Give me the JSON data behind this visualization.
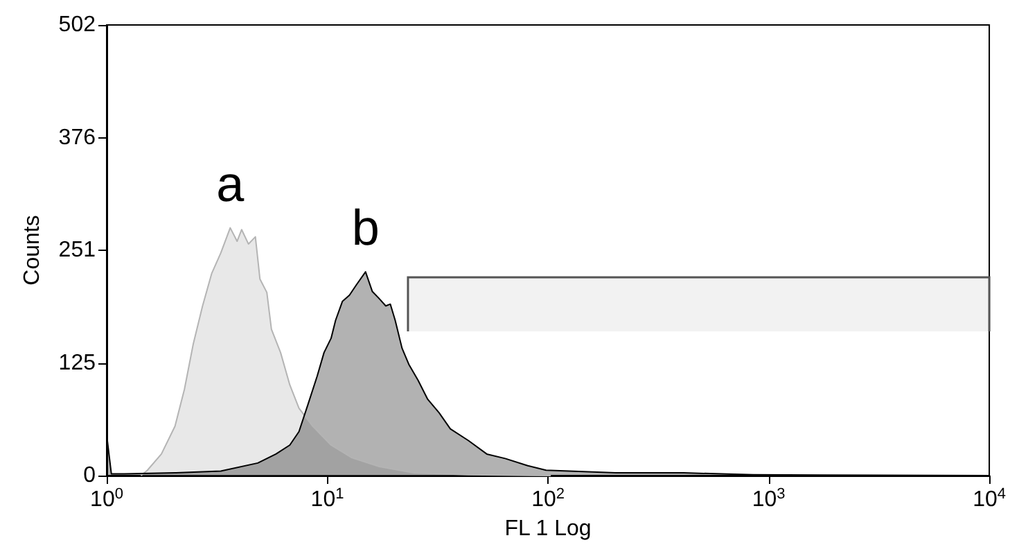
{
  "chart_data": {
    "type": "area",
    "xlabel": "FL 1 Log",
    "ylabel": "Counts",
    "log": "x",
    "grid": false,
    "legend": false,
    "marker": "none",
    "line_style": "solid",
    "xlim": [
      1,
      10000
    ],
    "xticks": [
      {
        "value": 1,
        "label": "10$^{0}$"
      },
      {
        "value": 10,
        "label": "10$^{1}$"
      },
      {
        "value": 100,
        "label": "10$^{2}$"
      },
      {
        "value": 1000,
        "label": "10$^{3}$"
      },
      {
        "value": 10000,
        "label": "10$^{4}$"
      }
    ],
    "ylim": [
      0,
      502
    ],
    "yticks": [
      0,
      125,
      251,
      376,
      502
    ],
    "series": [
      {
        "name": "a",
        "color": "#b4b4b4",
        "x": [
          1.43,
          1.53,
          1.77,
          2.04,
          2.25,
          2.47,
          2.72,
          2.99,
          3.29,
          3.63,
          3.9,
          4.09,
          4.39,
          4.72,
          4.95,
          5.32,
          5.58,
          6.14,
          6.76,
          7.44,
          8.59,
          10.4,
          12.9,
          17.2,
          24.6,
          43.6,
          103
        ],
        "values": [
          0,
          6,
          24,
          55,
          96,
          147,
          189,
          225,
          248,
          276,
          261,
          274,
          258,
          266,
          219,
          204,
          163,
          137,
          101,
          75,
          55,
          34,
          20,
          10,
          3,
          1,
          0
        ]
      },
      {
        "name": "b",
        "color": "#000000",
        "x": [
          1,
          1.05,
          1.2,
          2.04,
          3.29,
          4.84,
          5.85,
          6.76,
          7.44,
          8.19,
          9,
          9.66,
          10.4,
          10.9,
          11.7,
          12.6,
          13.5,
          14.9,
          16,
          17.2,
          18.4,
          19.3,
          20.3,
          21.8,
          23.4,
          25.8,
          28.5,
          32.1,
          36.1,
          43.6,
          52.8,
          64,
          81,
          98,
          125,
          203,
          413,
          850,
          1740,
          10000
        ],
        "values": [
          45,
          2,
          2,
          3,
          5,
          14,
          24,
          34,
          49,
          80,
          111,
          137,
          153,
          173,
          194,
          201,
          212,
          227,
          205,
          197,
          189,
          191,
          173,
          142,
          124,
          106,
          85,
          70,
          52,
          39,
          24,
          19,
          11,
          6,
          5,
          3,
          3,
          1,
          0.5,
          0
        ]
      }
    ],
    "bands": [
      {
        "axis": "x",
        "from": 23.2,
        "to": 10000,
        "color": "#555555"
      }
    ]
  }
}
